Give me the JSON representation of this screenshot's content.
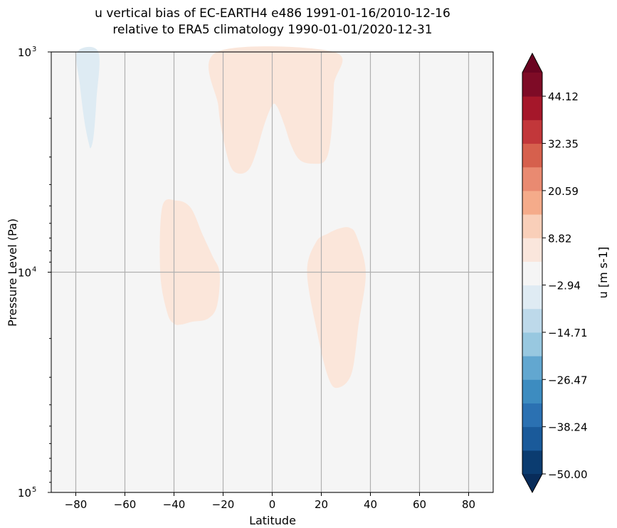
{
  "chart_data": {
    "type": "contourf",
    "title": [
      "u vertical bias of EC-EARTH4 e486 1991-01-16/2010-12-16",
      "relative to ERA5 climatology 1990-01-01/2020-12-31"
    ],
    "xlabel": "Latitude",
    "ylabel": "Pressure Level (Pa)",
    "xlim": [
      -90,
      90
    ],
    "ylim": [
      100000,
      1000
    ],
    "yscale": "log",
    "y_inverted": true,
    "grid": true,
    "xticks": [
      -80,
      -60,
      -40,
      -20,
      0,
      20,
      40,
      60,
      80
    ],
    "xtick_labels": [
      "−80",
      "−60",
      "−40",
      "−20",
      "0",
      "20",
      "40",
      "60",
      "80"
    ],
    "yticks": [
      1000,
      10000,
      100000
    ],
    "ytick_labels": [
      {
        "base": "10",
        "exp": "3"
      },
      {
        "base": "10",
        "exp": "4"
      },
      {
        "base": "10",
        "exp": "5"
      }
    ],
    "background_level_color": "#f5f5f5",
    "regions": [
      {
        "range": [
          -8.82,
          -2.94
        ],
        "color": "#deebf3",
        "points": [
          [
            -79.4,
            1000
          ],
          [
            -78.3,
            1419
          ],
          [
            -76.5,
            2057
          ],
          [
            -74.8,
            2572
          ],
          [
            -73.9,
            2730
          ],
          [
            -72.7,
            2388
          ],
          [
            -71.6,
            1646
          ],
          [
            -70.8,
            1000
          ]
        ]
      },
      {
        "range": [
          2.94,
          8.82
        ],
        "color": "#fbe6da",
        "points": [
          [
            -22.5,
            1000
          ],
          [
            -21.9,
            1774
          ],
          [
            -19.6,
            2572
          ],
          [
            -16.8,
            3337
          ],
          [
            -13.3,
            3570
          ],
          [
            -9.5,
            3413
          ],
          [
            -6.6,
            2876
          ],
          [
            -3.2,
            2136
          ],
          [
            0,
            1747
          ],
          [
            2.0,
            1774
          ],
          [
            4.9,
            2136
          ],
          [
            7.8,
            2668
          ],
          [
            11.3,
            3098
          ],
          [
            16.5,
            3215
          ],
          [
            21.7,
            3098
          ],
          [
            24.0,
            2388
          ],
          [
            25.1,
            1419
          ],
          [
            25.1,
            1000
          ]
        ]
      },
      {
        "range": [
          2.94,
          8.82
        ],
        "color": "#fbe6da",
        "points": [
          [
            -44.8,
            5060
          ],
          [
            -39.0,
            4730
          ],
          [
            -33.2,
            5100
          ],
          [
            -28.3,
            6770
          ],
          [
            -24.3,
            8460
          ],
          [
            -21.4,
            10100
          ],
          [
            -22.5,
            14230
          ],
          [
            -26.3,
            16290
          ],
          [
            -32.6,
            16780
          ],
          [
            -37.0,
            17280
          ],
          [
            -39.9,
            17150
          ],
          [
            -42.7,
            15340
          ],
          [
            -45.6,
            10100
          ]
        ]
      },
      {
        "range": [
          2.94,
          8.82
        ],
        "color": "#fbe6da",
        "points": [
          [
            14.2,
            10040
          ],
          [
            17.9,
            7290
          ],
          [
            22.8,
            6670
          ],
          [
            27.4,
            6330
          ],
          [
            31.5,
            6280
          ],
          [
            34.4,
            6870
          ],
          [
            38.1,
            10040
          ],
          [
            35.2,
            17150
          ],
          [
            32.3,
            28860
          ],
          [
            26.6,
            33500
          ],
          [
            22.8,
            29980
          ],
          [
            18.5,
            19180
          ]
        ]
      }
    ],
    "colorbar": {
      "label": "u [m s-1]",
      "min": -50.0,
      "max": 50.0,
      "n_levels": 17,
      "extend": "both",
      "colors": [
        "#0b3c70",
        "#1a5a9a",
        "#2b71b2",
        "#3d8cc0",
        "#62a7d0",
        "#98c8e0",
        "#bdd9ea",
        "#dfebf3",
        "#f5f5f5",
        "#fae6dc",
        "#f9cfb9",
        "#f5ab8a",
        "#e98a71",
        "#d6604d",
        "#c2373a",
        "#a5172a",
        "#7e0b26"
      ],
      "under_color": "#082c5a",
      "over_color": "#6a0421",
      "ticks": [
        -50.0,
        -38.24,
        -26.47,
        -14.71,
        -2.94,
        8.82,
        20.59,
        32.35,
        44.12
      ],
      "tick_labels": [
        "−50.00",
        "−38.24",
        "−26.47",
        "−14.71",
        "−2.94",
        "8.82",
        "20.59",
        "32.35",
        "44.12"
      ]
    }
  }
}
